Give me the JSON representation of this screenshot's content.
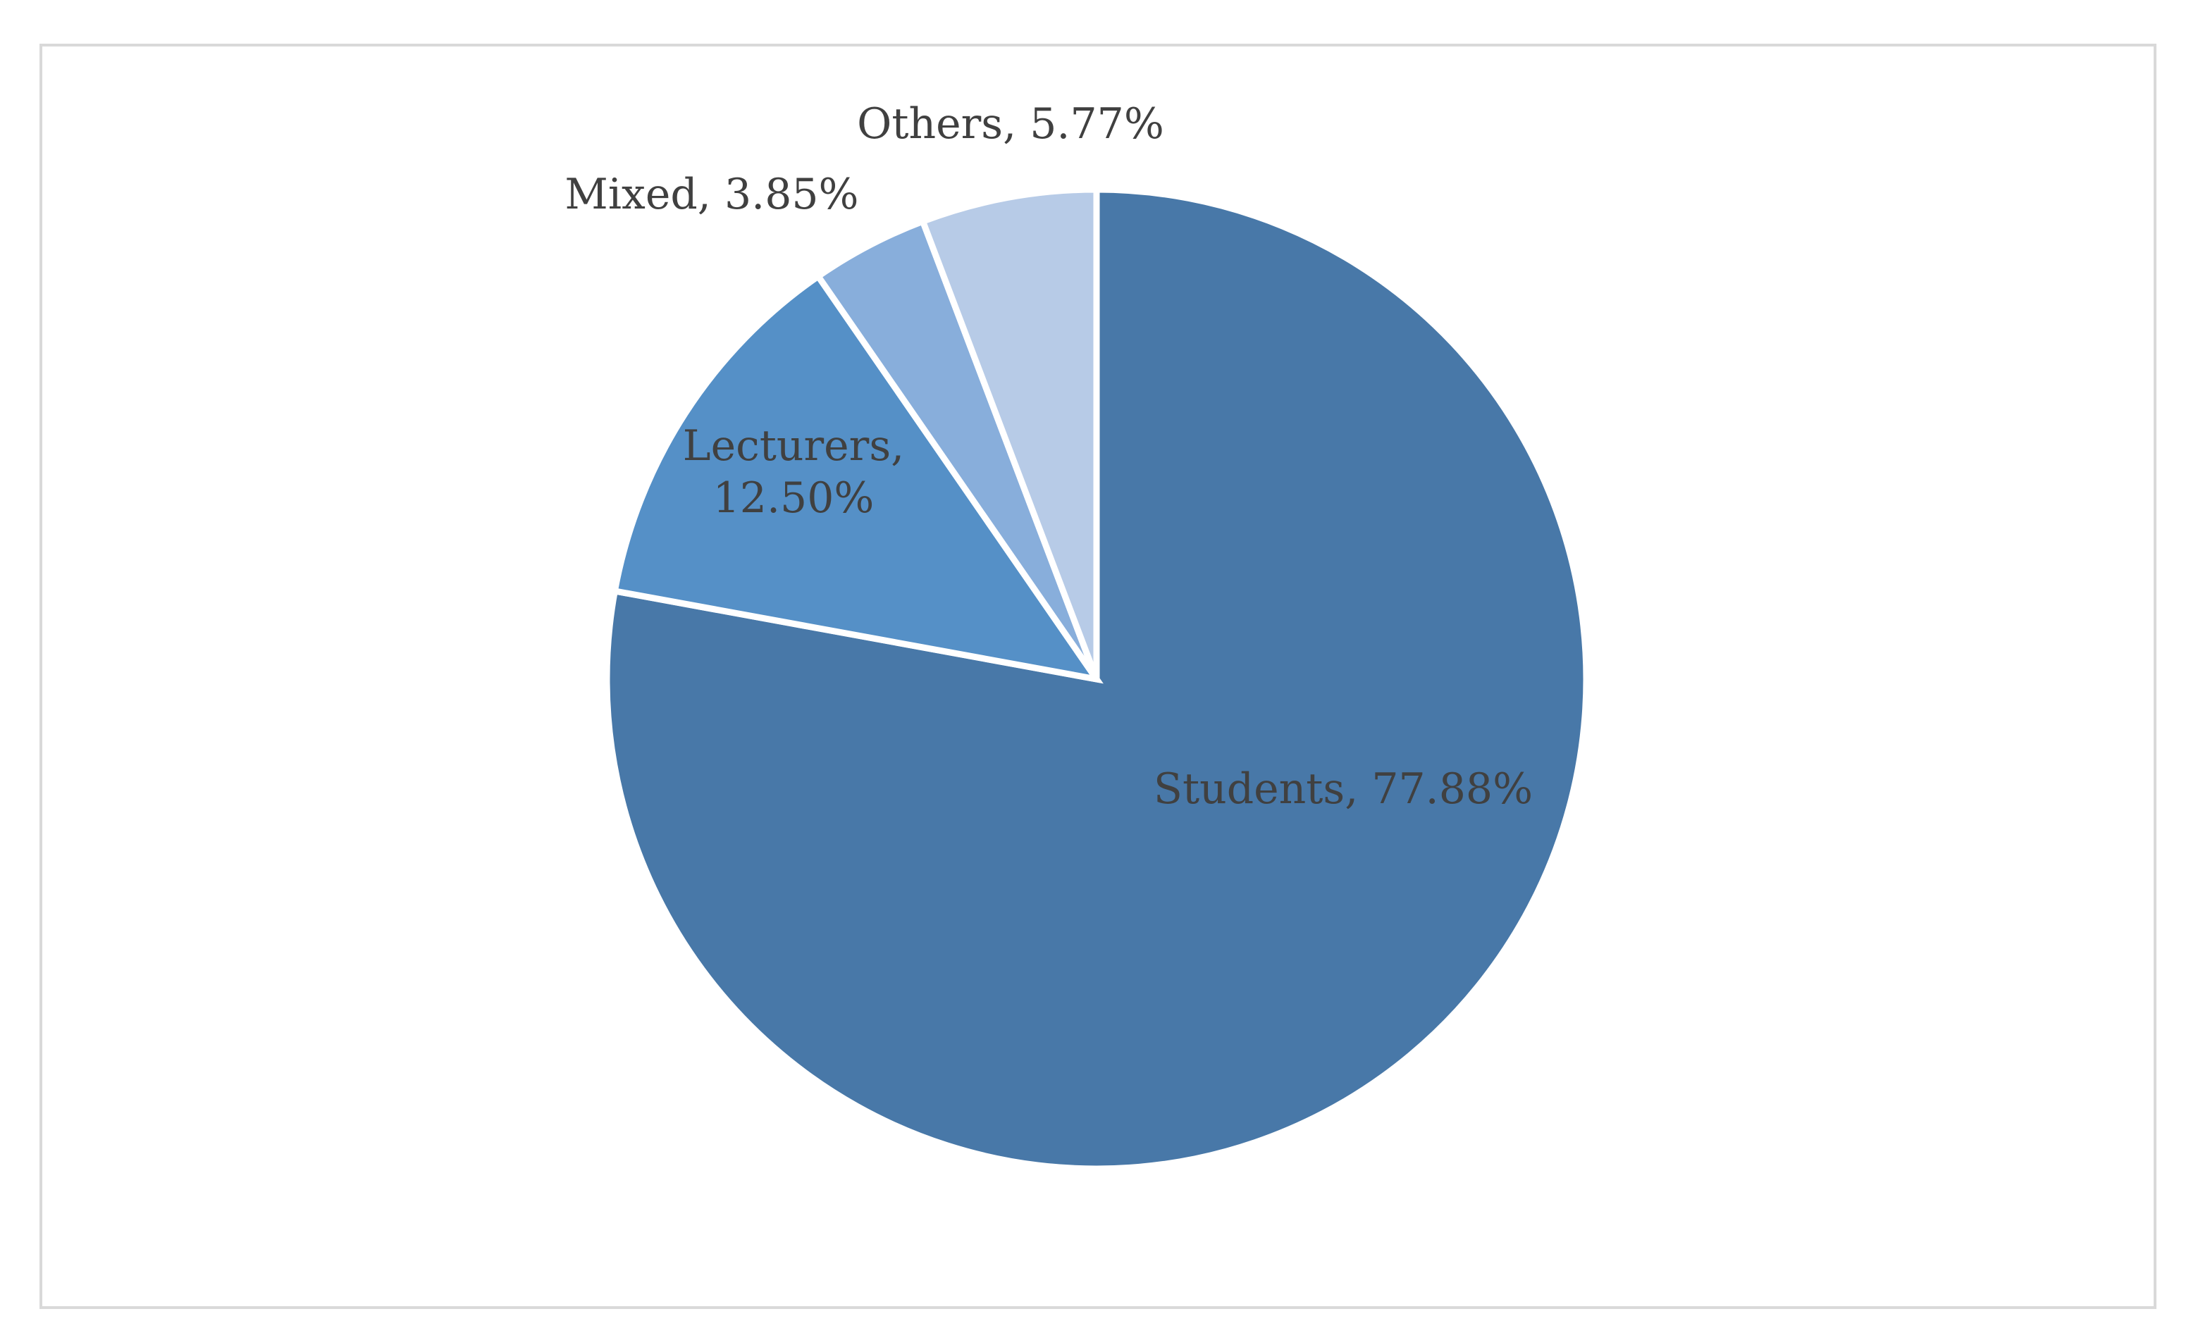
{
  "chart_data": {
    "type": "pie",
    "title": "",
    "start_angle_deg": 0,
    "direction": "clockwise",
    "slices": [
      {
        "name": "Students",
        "value": 77.88,
        "label": "Students, 77.88%",
        "label_lines": [
          "Students, 77.88%"
        ],
        "color": "#4878a8"
      },
      {
        "name": "Lecturers",
        "value": 12.5,
        "label": "Lecturers, 12.50%",
        "label_lines": [
          "Lecturers,",
          "12.50%"
        ],
        "color": "#5590c7"
      },
      {
        "name": "Mixed",
        "value": 3.85,
        "label": "Mixed, 3.85%",
        "label_lines": [
          "Mixed, 3.85%"
        ],
        "color": "#88aedb"
      },
      {
        "name": "Others",
        "value": 5.77,
        "label": "Others, 5.77%",
        "label_lines": [
          "Others, 5.77%"
        ],
        "color": "#b7cbe7"
      }
    ],
    "slice_separator_color": "#ffffff"
  }
}
